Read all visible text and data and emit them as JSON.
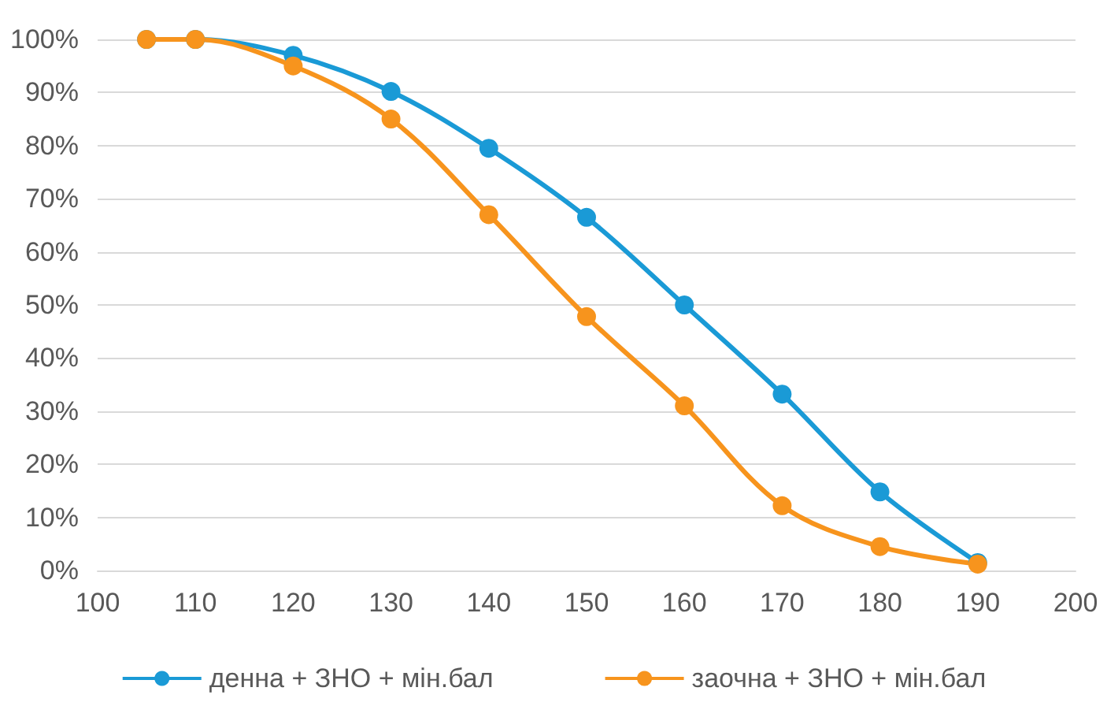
{
  "chart_data": {
    "type": "line",
    "x": [
      105,
      110,
      120,
      130,
      140,
      150,
      160,
      170,
      180,
      190
    ],
    "series": [
      {
        "name": "денна + ЗНО + мін.бал",
        "color": "#1a9ad6",
        "values": [
          100,
          100,
          97,
          90.2,
          79.5,
          66.5,
          50,
          33.2,
          14.8,
          1.5
        ]
      },
      {
        "name": "заочна + ЗНО + мін.бал",
        "color": "#f7941d",
        "values": [
          100,
          100,
          95,
          85,
          67,
          47.8,
          31,
          12.2,
          4.5,
          1.2
        ]
      }
    ],
    "xlim": [
      100,
      200
    ],
    "xticks": [
      100,
      110,
      120,
      130,
      140,
      150,
      160,
      170,
      180,
      190,
      200
    ],
    "ylim": [
      0,
      100
    ],
    "yticks": [
      {
        "value": 0,
        "label": "0%"
      },
      {
        "value": 10,
        "label": "10%"
      },
      {
        "value": 20,
        "label": "20%"
      },
      {
        "value": 30,
        "label": "30%"
      },
      {
        "value": 40,
        "label": "40%"
      },
      {
        "value": 50,
        "label": "50%"
      },
      {
        "value": 60,
        "label": "60%"
      },
      {
        "value": 70,
        "label": "70%"
      },
      {
        "value": 80,
        "label": "80%"
      },
      {
        "value": 90,
        "label": "90%"
      },
      {
        "value": 100,
        "label": "100%"
      }
    ],
    "grid": "y",
    "legend": "bottom",
    "marker": "circle",
    "line_style": "solid"
  }
}
